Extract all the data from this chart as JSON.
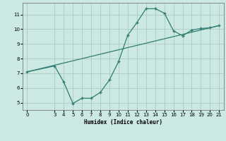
{
  "xlabel": "Humidex (Indice chaleur)",
  "ylabel": "",
  "bg_color": "#cce8e3",
  "grid_color": "#b0cfc9",
  "line_color": "#2e7d72",
  "x_ticks": [
    0,
    3,
    4,
    5,
    6,
    7,
    8,
    9,
    10,
    11,
    12,
    13,
    14,
    15,
    16,
    17,
    18,
    19,
    20,
    21
  ],
  "y_ticks": [
    5,
    6,
    7,
    8,
    9,
    10,
    11
  ],
  "ylim": [
    4.5,
    11.8
  ],
  "xlim": [
    -0.5,
    21.5
  ],
  "data_line": {
    "x": [
      0,
      3,
      4,
      5,
      6,
      7,
      8,
      9,
      10,
      11,
      12,
      13,
      14,
      15,
      16,
      17,
      18,
      19,
      20,
      21
    ],
    "y": [
      7.1,
      7.5,
      6.4,
      4.95,
      5.3,
      5.3,
      5.7,
      6.55,
      7.8,
      9.6,
      10.45,
      11.4,
      11.4,
      11.1,
      9.9,
      9.55,
      9.95,
      10.05,
      10.1,
      10.25
    ]
  },
  "trend_line": {
    "x": [
      0,
      21
    ],
    "y": [
      7.1,
      10.25
    ]
  }
}
